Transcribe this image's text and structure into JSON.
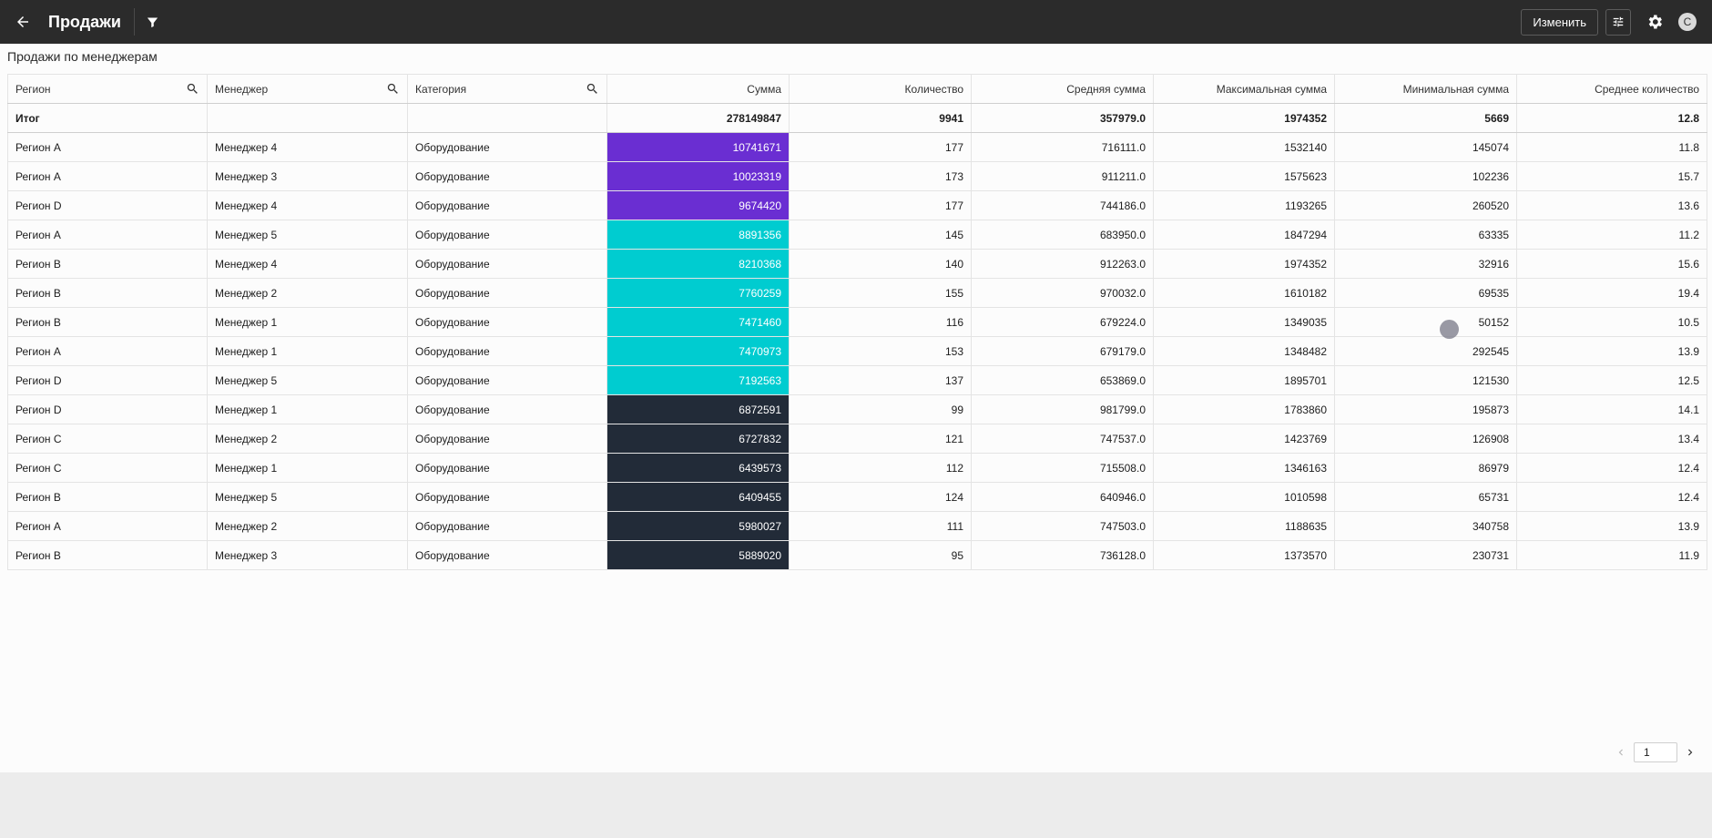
{
  "app": {
    "title": "Продажи",
    "edit_label": "Изменить",
    "avatar_initial": "C"
  },
  "report": {
    "subtitle": "Продажи по менеджерам"
  },
  "columns": [
    "Регион",
    "Менеджер",
    "Категория",
    "Сумма",
    "Количество",
    "Средняя сумма",
    "Максимальная сумма",
    "Минимальная сумма",
    "Среднее количество"
  ],
  "total": {
    "label": "Итог",
    "sum": "278149847",
    "qty": "9941",
    "avg": "357979.0",
    "max": "1974352",
    "min": "5669",
    "avgqty": "12.8"
  },
  "heat_colors": {
    "high": "#6a2ed2",
    "mid": "#00ccd0",
    "low": "#222b38"
  },
  "rows": [
    {
      "region": "Регион A",
      "manager": "Менеджер 4",
      "category": "Оборудование",
      "sum": "10741671",
      "qty": "177",
      "avg": "716111.0",
      "max": "1532140",
      "min": "145074",
      "avgqty": "11.8",
      "tier": "high"
    },
    {
      "region": "Регион A",
      "manager": "Менеджер 3",
      "category": "Оборудование",
      "sum": "10023319",
      "qty": "173",
      "avg": "911211.0",
      "max": "1575623",
      "min": "102236",
      "avgqty": "15.7",
      "tier": "high"
    },
    {
      "region": "Регион D",
      "manager": "Менеджер 4",
      "category": "Оборудование",
      "sum": "9674420",
      "qty": "177",
      "avg": "744186.0",
      "max": "1193265",
      "min": "260520",
      "avgqty": "13.6",
      "tier": "high"
    },
    {
      "region": "Регион A",
      "manager": "Менеджер 5",
      "category": "Оборудование",
      "sum": "8891356",
      "qty": "145",
      "avg": "683950.0",
      "max": "1847294",
      "min": "63335",
      "avgqty": "11.2",
      "tier": "mid"
    },
    {
      "region": "Регион B",
      "manager": "Менеджер 4",
      "category": "Оборудование",
      "sum": "8210368",
      "qty": "140",
      "avg": "912263.0",
      "max": "1974352",
      "min": "32916",
      "avgqty": "15.6",
      "tier": "mid"
    },
    {
      "region": "Регион B",
      "manager": "Менеджер 2",
      "category": "Оборудование",
      "sum": "7760259",
      "qty": "155",
      "avg": "970032.0",
      "max": "1610182",
      "min": "69535",
      "avgqty": "19.4",
      "tier": "mid"
    },
    {
      "region": "Регион B",
      "manager": "Менеджер 1",
      "category": "Оборудование",
      "sum": "7471460",
      "qty": "116",
      "avg": "679224.0",
      "max": "1349035",
      "min": "50152",
      "avgqty": "10.5",
      "tier": "mid"
    },
    {
      "region": "Регион A",
      "manager": "Менеджер 1",
      "category": "Оборудование",
      "sum": "7470973",
      "qty": "153",
      "avg": "679179.0",
      "max": "1348482",
      "min": "292545",
      "avgqty": "13.9",
      "tier": "mid"
    },
    {
      "region": "Регион D",
      "manager": "Менеджер 5",
      "category": "Оборудование",
      "sum": "7192563",
      "qty": "137",
      "avg": "653869.0",
      "max": "1895701",
      "min": "121530",
      "avgqty": "12.5",
      "tier": "mid"
    },
    {
      "region": "Регион D",
      "manager": "Менеджер 1",
      "category": "Оборудование",
      "sum": "6872591",
      "qty": "99",
      "avg": "981799.0",
      "max": "1783860",
      "min": "195873",
      "avgqty": "14.1",
      "tier": "low"
    },
    {
      "region": "Регион C",
      "manager": "Менеджер 2",
      "category": "Оборудование",
      "sum": "6727832",
      "qty": "121",
      "avg": "747537.0",
      "max": "1423769",
      "min": "126908",
      "avgqty": "13.4",
      "tier": "low"
    },
    {
      "region": "Регион C",
      "manager": "Менеджер 1",
      "category": "Оборудование",
      "sum": "6439573",
      "qty": "112",
      "avg": "715508.0",
      "max": "1346163",
      "min": "86979",
      "avgqty": "12.4",
      "tier": "low"
    },
    {
      "region": "Регион B",
      "manager": "Менеджер 5",
      "category": "Оборудование",
      "sum": "6409455",
      "qty": "124",
      "avg": "640946.0",
      "max": "1010598",
      "min": "65731",
      "avgqty": "12.4",
      "tier": "low"
    },
    {
      "region": "Регион A",
      "manager": "Менеджер 2",
      "category": "Оборудование",
      "sum": "5980027",
      "qty": "111",
      "avg": "747503.0",
      "max": "1188635",
      "min": "340758",
      "avgqty": "13.9",
      "tier": "low"
    },
    {
      "region": "Регион B",
      "manager": "Менеджер 3",
      "category": "Оборудование",
      "sum": "5889020",
      "qty": "95",
      "avg": "736128.0",
      "max": "1373570",
      "min": "230731",
      "avgqty": "11.9",
      "tier": "low"
    }
  ],
  "pagination": {
    "page": "1"
  },
  "icons": {
    "back": "arrow-left-icon",
    "filter": "filter-icon",
    "tune": "tune-icon",
    "settings": "gear-icon",
    "search": "search-icon"
  }
}
